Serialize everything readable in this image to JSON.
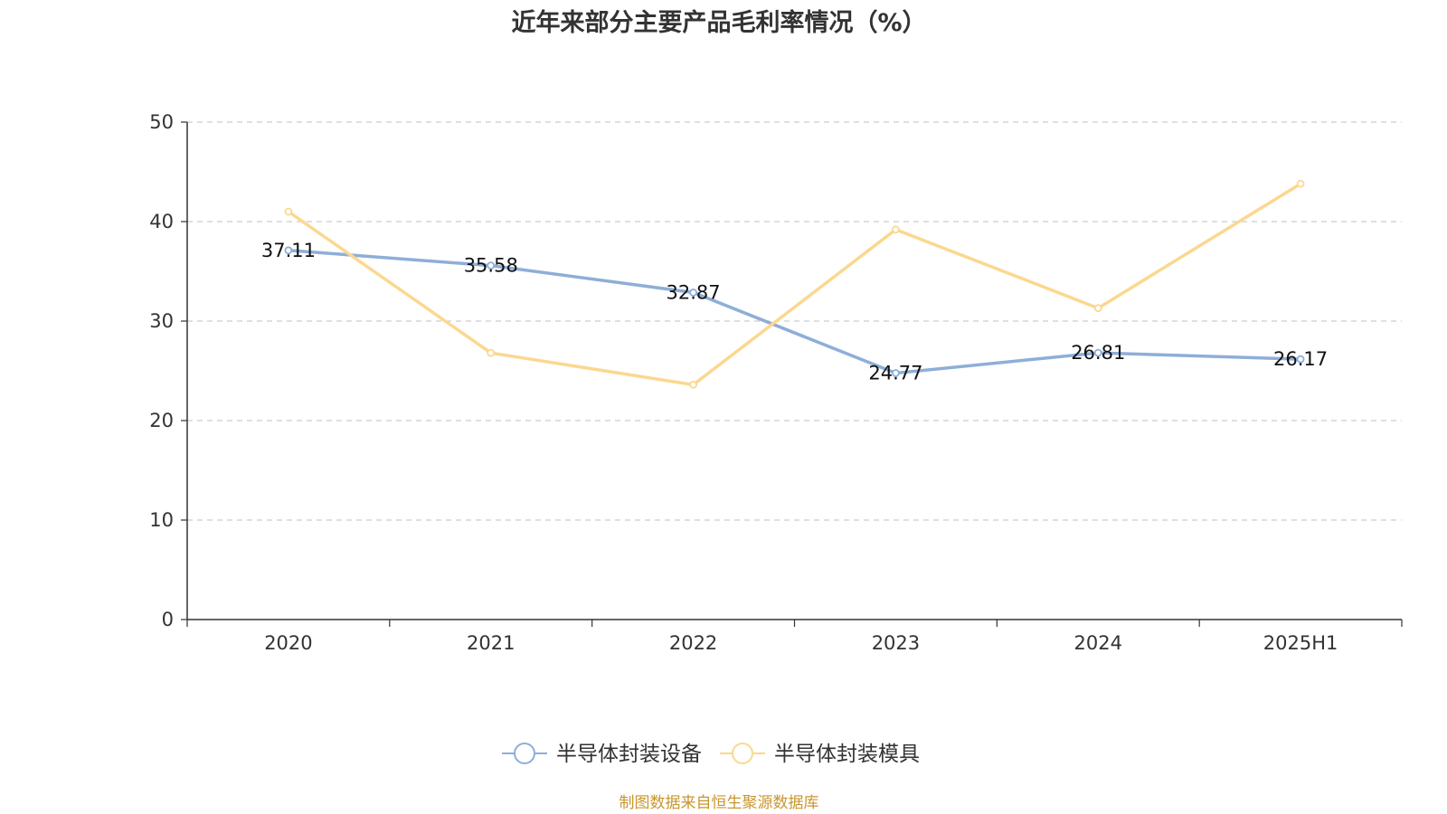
{
  "chart_data": {
    "type": "line",
    "title": "近年来部分主要产品毛利率情况（%）",
    "categories": [
      "2020",
      "2021",
      "2022",
      "2023",
      "2024",
      "2025H1"
    ],
    "ylim": [
      0,
      50
    ],
    "yticks": [
      0,
      10,
      20,
      30,
      40,
      50
    ],
    "grid": true,
    "legend_position": "bottom-center",
    "series": [
      {
        "name": "半导体封装设备",
        "color": "#8eaed8",
        "values": [
          37.11,
          35.58,
          32.87,
          24.77,
          26.81,
          26.17
        ],
        "labels": [
          "37.11",
          "35.58",
          "32.87",
          "24.77",
          "26.81",
          "26.17"
        ]
      },
      {
        "name": "半导体封装模具",
        "color": "#fbd88f",
        "values": [
          41.0,
          26.8,
          23.6,
          39.2,
          31.3,
          43.8
        ]
      }
    ]
  },
  "footer": {
    "source": "制图数据来自恒生聚源数据库",
    "source_color": "#c8962f"
  }
}
